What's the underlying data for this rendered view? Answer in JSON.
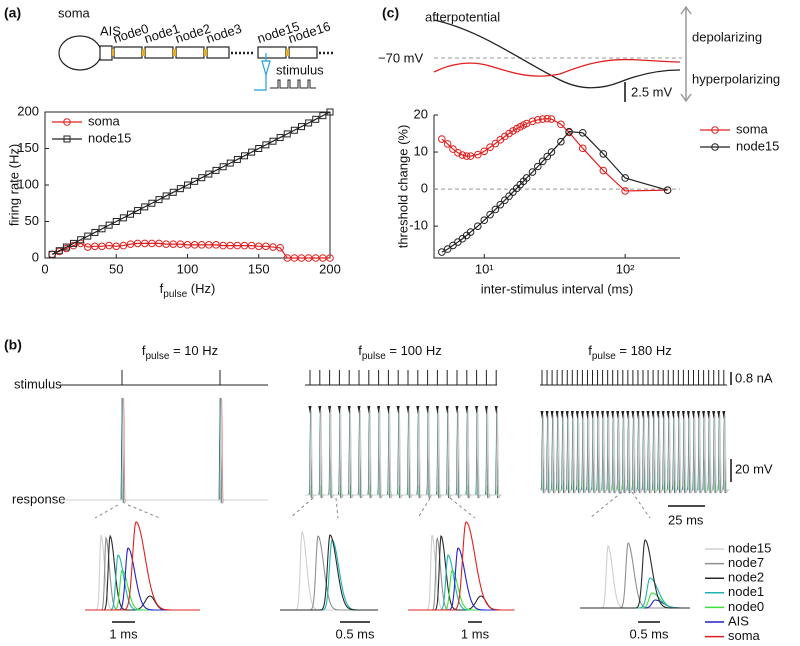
{
  "panel_labels": {
    "a": "(a)",
    "b": "(b)",
    "c": "(c)"
  },
  "diagram": {
    "soma": "soma",
    "AIS": "AIS",
    "nodes": [
      "node0",
      "node1",
      "node2",
      "node3",
      "node15",
      "node16"
    ],
    "stimulus": "stimulus"
  },
  "afterpotential": {
    "title": "afterpotential",
    "rest": "−70 mV",
    "depolarizing": "depolarizing",
    "hyperpolarizing": "hyperpolarizing",
    "scale": "2.5 mV"
  },
  "traces": {
    "conditions": [
      {
        "f": "f",
        "sub": "pulse",
        "rest": " = 10 Hz"
      },
      {
        "f": "f",
        "sub": "pulse",
        "rest": " = 100 Hz"
      },
      {
        "f": "f",
        "sub": "pulse",
        "rest": " = 180 Hz"
      }
    ],
    "rows": {
      "stimulus": "stimulus",
      "response": "response"
    },
    "scales": {
      "current": "0.8 nA",
      "voltage": "20 mV",
      "time": "25 ms"
    },
    "inset_scales": [
      "1 ms",
      "0.5 ms",
      "1 ms",
      "0.5 ms"
    ],
    "legend": [
      {
        "name": "node15",
        "color": "#cfcfcf"
      },
      {
        "name": "node7",
        "color": "#8f8f8f"
      },
      {
        "name": "node2",
        "color": "#2a2a2a"
      },
      {
        "name": "node1",
        "color": "#1fb3b3"
      },
      {
        "name": "node0",
        "color": "#3ee03e"
      },
      {
        "name": "AIS",
        "color": "#2020d0"
      },
      {
        "name": "soma",
        "color": "#e02020"
      }
    ]
  },
  "chart_data": [
    {
      "type": "line",
      "xlabel": {
        "f": "f",
        "sub": "pulse",
        "unit": " (Hz)"
      },
      "ylabel": "firing rate (Hz)",
      "x": [
        5,
        10,
        15,
        20,
        25,
        30,
        35,
        40,
        45,
        50,
        55,
        60,
        65,
        70,
        75,
        80,
        85,
        90,
        95,
        100,
        105,
        110,
        115,
        120,
        125,
        130,
        135,
        140,
        145,
        150,
        155,
        160,
        165,
        170,
        175,
        180,
        185,
        190,
        195,
        200
      ],
      "series": [
        {
          "name": "soma",
          "color": "#e02020",
          "marker": "circle",
          "values": [
            5,
            9,
            13,
            17,
            20,
            15,
            16,
            16,
            17,
            16,
            17,
            19,
            20,
            20,
            20,
            20,
            19,
            19,
            19,
            18,
            18,
            18,
            18,
            18,
            17,
            17,
            17,
            17,
            17,
            16,
            16,
            15,
            14,
            0,
            0,
            0,
            0,
            0,
            0,
            0
          ]
        },
        {
          "name": "node15",
          "color": "#222222",
          "marker": "square",
          "values": [
            5,
            10,
            15,
            20,
            25,
            30,
            35,
            40,
            45,
            50,
            55,
            60,
            65,
            70,
            75,
            80,
            85,
            90,
            95,
            100,
            105,
            110,
            115,
            120,
            125,
            130,
            135,
            140,
            145,
            150,
            155,
            160,
            165,
            170,
            175,
            180,
            185,
            190,
            195,
            200
          ]
        }
      ],
      "xlim": [
        0,
        200
      ],
      "xticks": [
        0,
        50,
        100,
        150,
        200
      ],
      "ylim": [
        0,
        200
      ],
      "yticks": [
        0,
        50,
        100,
        150,
        200
      ],
      "box": true
    },
    {
      "type": "line",
      "xscale": "log",
      "xlabel": "inter-stimulus interval (ms)",
      "ylabel": "threshold change (%)",
      "x": [
        5,
        5.5,
        6,
        6.5,
        7,
        7.5,
        8,
        9,
        10,
        11,
        12,
        13,
        14,
        15,
        16,
        17,
        18,
        19,
        20,
        22,
        24,
        26,
        28,
        30,
        35,
        40,
        50,
        70,
        100,
        200
      ],
      "series": [
        {
          "name": "soma",
          "color": "#e02020",
          "marker": "circle",
          "values": [
            13.5,
            12.2,
            10.8,
            9.8,
            9.2,
            8.9,
            8.9,
            9.3,
            10.2,
            11.3,
            12.3,
            13.3,
            14.2,
            15,
            15.7,
            16.3,
            16.8,
            17.3,
            17.7,
            18.3,
            18.7,
            18.9,
            19,
            18.9,
            17.5,
            15.3,
            11,
            5,
            -0.5,
            -0.3
          ]
        },
        {
          "name": "node15",
          "color": "#222222",
          "marker": "circle",
          "values": [
            -17,
            -16.2,
            -15.2,
            -14.3,
            -13.4,
            -12.5,
            -11.6,
            -10,
            -8.4,
            -6.9,
            -5.5,
            -4.2,
            -3,
            -1.9,
            -0.8,
            0.2,
            1.2,
            2.1,
            3,
            4.6,
            6.1,
            7.5,
            8.8,
            10,
            12.8,
            15.5,
            15.2,
            9.5,
            3,
            -0.3
          ]
        }
      ],
      "xlim": [
        4.4,
        245
      ],
      "xticks": [
        {
          "value": 10,
          "label": "10¹"
        },
        {
          "value": 100,
          "label": "10²"
        }
      ],
      "ylim": [
        -18.6,
        20
      ],
      "yticks": [
        -10,
        0,
        10,
        20
      ],
      "reference_line": 0,
      "box": false
    }
  ]
}
